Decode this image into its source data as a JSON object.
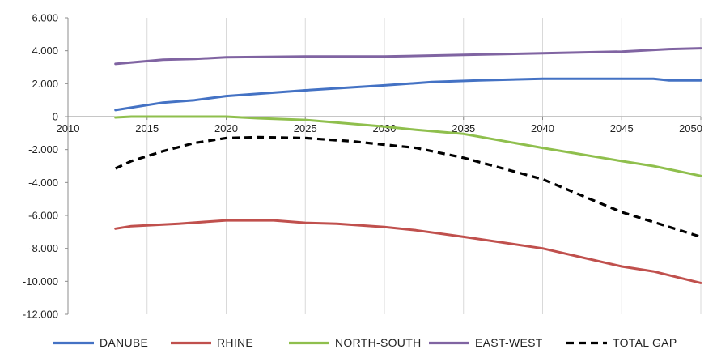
{
  "chart_data": {
    "type": "line",
    "title": "",
    "xlabel": "",
    "ylabel": "",
    "grid": "vertical",
    "legend_position": "bottom",
    "xlim": [
      2010,
      2050
    ],
    "ylim": [
      -12000,
      6000
    ],
    "x_ticks": [
      "2010",
      "2015",
      "2020",
      "2025",
      "2030",
      "2035",
      "2040",
      "2045",
      "2050"
    ],
    "y_ticks": [
      "6.000",
      "4.000",
      "2.000",
      "0",
      "-2.000",
      "-4.000",
      "-6.000",
      "-8.000",
      "-10.000",
      "-12.000"
    ],
    "series": [
      {
        "name": "DANUBE",
        "color": "#4472c4",
        "dash": "solid",
        "points": [
          [
            2013,
            400
          ],
          [
            2016,
            850
          ],
          [
            2018,
            1000
          ],
          [
            2020,
            1250
          ],
          [
            2025,
            1600
          ],
          [
            2030,
            1900
          ],
          [
            2033,
            2100
          ],
          [
            2036,
            2200
          ],
          [
            2040,
            2300
          ],
          [
            2045,
            2300
          ],
          [
            2047,
            2300
          ],
          [
            2048,
            2200
          ],
          [
            2050,
            2200
          ]
        ]
      },
      {
        "name": "RHINE",
        "color": "#c0504d",
        "dash": "solid",
        "points": [
          [
            2013,
            -6800
          ],
          [
            2014,
            -6650
          ],
          [
            2017,
            -6500
          ],
          [
            2020,
            -6300
          ],
          [
            2023,
            -6300
          ],
          [
            2025,
            -6450
          ],
          [
            2027,
            -6500
          ],
          [
            2030,
            -6700
          ],
          [
            2032,
            -6900
          ],
          [
            2035,
            -7300
          ],
          [
            2040,
            -8000
          ],
          [
            2045,
            -9100
          ],
          [
            2047,
            -9400
          ],
          [
            2050,
            -10100
          ]
        ]
      },
      {
        "name": "NORTH-SOUTH",
        "color": "#8fbf4d",
        "dash": "solid",
        "points": [
          [
            2013,
            -50
          ],
          [
            2014,
            0
          ],
          [
            2016,
            0
          ],
          [
            2020,
            0
          ],
          [
            2022,
            -100
          ],
          [
            2025,
            -200
          ],
          [
            2030,
            -600
          ],
          [
            2032,
            -800
          ],
          [
            2035,
            -1050
          ],
          [
            2040,
            -1900
          ],
          [
            2045,
            -2700
          ],
          [
            2047,
            -3000
          ],
          [
            2050,
            -3600
          ]
        ]
      },
      {
        "name": "EAST-WEST",
        "color": "#8064a2",
        "dash": "solid",
        "points": [
          [
            2013,
            3200
          ],
          [
            2016,
            3450
          ],
          [
            2018,
            3500
          ],
          [
            2020,
            3600
          ],
          [
            2025,
            3650
          ],
          [
            2030,
            3650
          ],
          [
            2035,
            3750
          ],
          [
            2040,
            3850
          ],
          [
            2045,
            3950
          ],
          [
            2048,
            4100
          ],
          [
            2050,
            4150
          ]
        ]
      },
      {
        "name": "TOTAL GAP",
        "color": "#000000",
        "dash": "dashed",
        "points": [
          [
            2013,
            -3150
          ],
          [
            2014,
            -2700
          ],
          [
            2016,
            -2100
          ],
          [
            2018,
            -1600
          ],
          [
            2020,
            -1300
          ],
          [
            2022,
            -1250
          ],
          [
            2025,
            -1300
          ],
          [
            2028,
            -1500
          ],
          [
            2030,
            -1700
          ],
          [
            2032,
            -1900
          ],
          [
            2035,
            -2500
          ],
          [
            2040,
            -3800
          ],
          [
            2043,
            -5000
          ],
          [
            2045,
            -5800
          ],
          [
            2048,
            -6700
          ],
          [
            2050,
            -7300
          ]
        ]
      }
    ]
  }
}
